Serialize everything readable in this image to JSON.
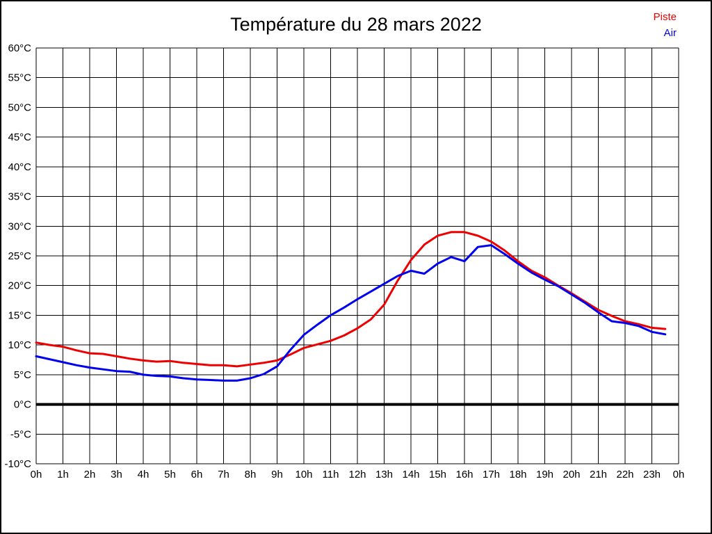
{
  "title": "Température du 28 mars 2022",
  "chart_data": {
    "type": "line",
    "title": "Température du 28 mars 2022",
    "xlim": [
      0,
      24
    ],
    "ylim": [
      -10,
      60
    ],
    "y_tick_step": 5,
    "grid": true,
    "zero_line_at": 0,
    "legend_position": "top-right",
    "x_tick_labels": [
      "0h",
      "1h",
      "2h",
      "3h",
      "4h",
      "5h",
      "6h",
      "7h",
      "8h",
      "9h",
      "10h",
      "11h",
      "12h",
      "13h",
      "14h",
      "15h",
      "16h",
      "17h",
      "18h",
      "19h",
      "20h",
      "21h",
      "22h",
      "23h",
      "0h"
    ],
    "y_tick_labels": [
      "60°C",
      "55°C",
      "50°C",
      "45°C",
      "40°C",
      "35°C",
      "30°C",
      "25°C",
      "20°C",
      "15°C",
      "10°C",
      "5°C",
      "0°C",
      "-5°C",
      "-10°C"
    ],
    "x": [
      0,
      0.5,
      1,
      1.5,
      2,
      2.5,
      3,
      3.5,
      4,
      4.5,
      5,
      5.5,
      6,
      6.5,
      7,
      7.5,
      8,
      8.5,
      9,
      9.5,
      10,
      10.5,
      11,
      11.5,
      12,
      12.5,
      13,
      13.5,
      14,
      14.5,
      15,
      15.5,
      16,
      16.5,
      17,
      17.5,
      18,
      18.5,
      19,
      19.5,
      20,
      20.5,
      21,
      21.5,
      22,
      22.5,
      23,
      23.5
    ],
    "series": [
      {
        "name": "Piste",
        "color": "#ee0000",
        "values": [
          10.4,
          10.0,
          9.7,
          9.1,
          8.6,
          8.5,
          8.1,
          7.7,
          7.4,
          7.2,
          7.3,
          7.0,
          6.8,
          6.6,
          6.6,
          6.4,
          6.7,
          7.0,
          7.4,
          8.4,
          9.5,
          10.1,
          10.7,
          11.6,
          12.8,
          14.3,
          16.8,
          20.8,
          24.3,
          26.9,
          28.4,
          29.0,
          29.0,
          28.4,
          27.4,
          25.9,
          24.1,
          22.5,
          21.4,
          20.0,
          18.7,
          17.3,
          15.9,
          14.9,
          14.0,
          13.5,
          12.9,
          12.7
        ]
      },
      {
        "name": "Air",
        "color": "#0000ee",
        "values": [
          8.1,
          7.6,
          7.1,
          6.6,
          6.2,
          5.9,
          5.6,
          5.5,
          5.0,
          4.8,
          4.7,
          4.4,
          4.2,
          4.1,
          4.0,
          4.0,
          4.4,
          5.1,
          6.4,
          9.2,
          11.7,
          13.4,
          15.0,
          16.3,
          17.7,
          19.0,
          20.3,
          21.6,
          22.5,
          22.0,
          23.7,
          24.8,
          24.1,
          26.5,
          26.8,
          25.3,
          23.7,
          22.2,
          21.0,
          19.9,
          18.5,
          17.1,
          15.5,
          14.0,
          13.7,
          13.2,
          12.2,
          11.8
        ]
      }
    ]
  }
}
